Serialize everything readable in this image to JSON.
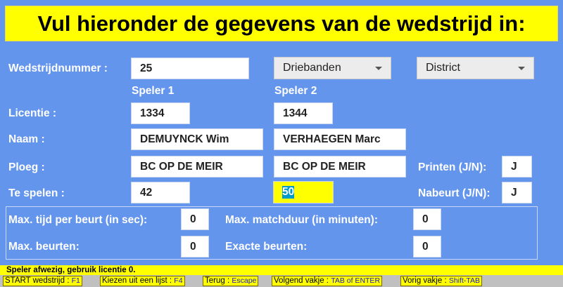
{
  "title": "Vul hieronder de gegevens van de wedstrijd in:",
  "match": {
    "label": "Wedstrijdnummer :",
    "value": "25",
    "discipline": "Driebanden",
    "level": "District"
  },
  "players": {
    "header1": "Speler 1",
    "header2": "Speler 2"
  },
  "licentie": {
    "label": "Licentie :",
    "p1": "1334",
    "p2": "1344"
  },
  "naam": {
    "label": "Naam :",
    "p1": "DEMUYNCK Wim",
    "p2": "VERHAEGEN Marc"
  },
  "ploeg": {
    "label": "Ploeg :",
    "p1": "BC OP DE MEIR",
    "p2": "BC OP DE MEIR"
  },
  "te_spelen": {
    "label": "Te spelen :",
    "p1": "42",
    "p2": "50"
  },
  "printen": {
    "label": "Printen (J/N):",
    "value": "J"
  },
  "nabeurt": {
    "label": "Nabeurt (J/N):",
    "value": "J"
  },
  "limits": {
    "max_tijd_label": "Max. tijd per beurt (in sec):",
    "max_tijd": "0",
    "max_matchduur_label": "Max. matchduur (in minuten):",
    "max_matchduur": "0",
    "max_beurten_label": "Max. beurten:",
    "max_beurten": "0",
    "exacte_beurten_label": "Exacte beurten:",
    "exacte_beurten": "0"
  },
  "status": "Speler afwezig, gebruik licentie 0.",
  "keys": [
    {
      "label": "START wedstrijd : ",
      "key": "F1"
    },
    {
      "label": "Kiezen uit een lijst : ",
      "key": "F4"
    },
    {
      "label": "Terug : ",
      "key": "Escape"
    },
    {
      "label": "Volgend vakje : ",
      "key": "TAB of ENTER"
    },
    {
      "label": "Vorig vakje : ",
      "key": "Shift-TAB"
    }
  ],
  "colors": {
    "background": "#6495ED",
    "highlight": "#ffff00",
    "selection": "#0099cc"
  }
}
